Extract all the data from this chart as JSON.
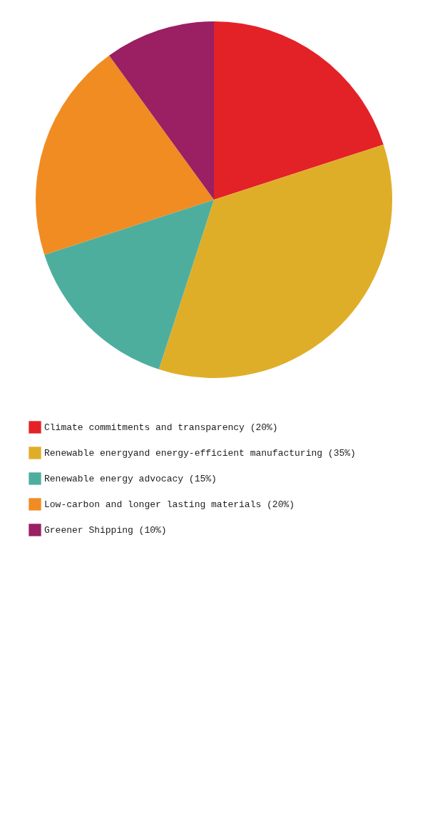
{
  "chart_data": {
    "type": "pie",
    "categories": [
      "Climate commitments and transparency (20%)",
      "Renewable energyand energy-efficient manufacturing (35%)",
      "Renewable energy advocacy (15%)",
      "Low-carbon and longer lasting materials (20%)",
      "Greener Shipping (10%)"
    ],
    "values": [
      20,
      35,
      15,
      20,
      10
    ],
    "colors": [
      "#e32227",
      "#dfae28",
      "#4dae9e",
      "#f08c22",
      "#9a1f63"
    ],
    "legend": "bottom"
  }
}
